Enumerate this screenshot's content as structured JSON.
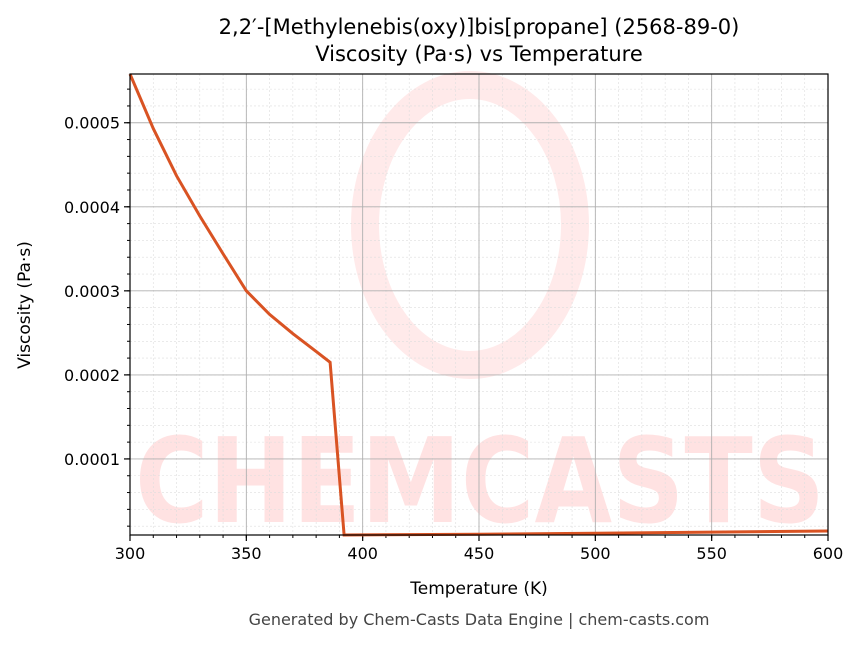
{
  "chart_data": {
    "type": "line",
    "title": "2,2′-[Methylenebis(oxy)]bis[propane] (2568-89-0)",
    "subtitle": "Viscosity (Pa·s) vs Temperature",
    "xlabel": "Temperature (K)",
    "ylabel": "Viscosity (Pa·s)",
    "xlim": [
      300,
      600
    ],
    "ylim": [
      9.5e-06,
      0.000558
    ],
    "xticks": [
      300,
      350,
      400,
      450,
      500,
      550,
      600
    ],
    "yticks": [
      0.0001,
      0.0002,
      0.0003,
      0.0004,
      0.0005
    ],
    "ytick_labels": [
      "0.0001",
      "0.0002",
      "0.0003",
      "0.0004",
      "0.0005"
    ],
    "grid": true,
    "line_color": "#d95323",
    "x": [
      300,
      310,
      320,
      330,
      340,
      350,
      360,
      370,
      380,
      386,
      392,
      450,
      500,
      550,
      600
    ],
    "y": [
      0.000558,
      0.000493,
      0.000437,
      0.000389,
      0.000344,
      0.0003,
      0.000272,
      0.000249,
      0.000228,
      0.000215,
      9.5e-06,
      1.05e-05,
      1.15e-05,
      1.3e-05,
      1.43e-05
    ],
    "watermark": "CHEMCASTS",
    "footer": "Generated by Chem-Casts Data Engine | chem-casts.com"
  }
}
